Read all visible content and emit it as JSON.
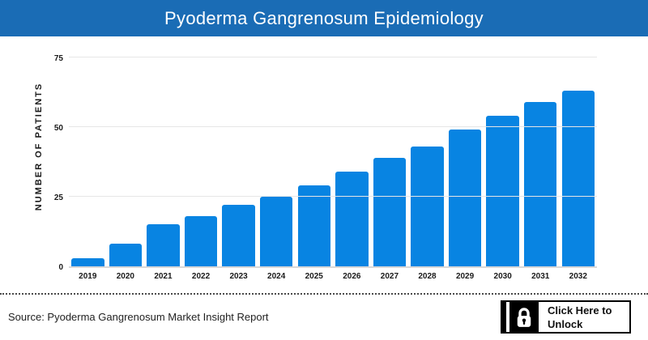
{
  "header": {
    "title": "Pyoderma Gangrenosum Epidemiology",
    "bg_color": "#1a6cb5",
    "text_color": "#ffffff"
  },
  "chart_data": {
    "type": "bar",
    "title": "Pyoderma Gangrenosum Epidemiology",
    "categories": [
      "2019",
      "2020",
      "2021",
      "2022",
      "2023",
      "2024",
      "2025",
      "2026",
      "2027",
      "2028",
      "2029",
      "2030",
      "2031",
      "2032"
    ],
    "values": [
      3,
      8,
      15,
      18,
      22,
      25,
      29,
      34,
      39,
      43,
      49,
      54,
      59,
      63
    ],
    "xlabel": "",
    "ylabel": "NUMBER OF PATIENTS",
    "ylim": [
      0,
      75
    ],
    "yticks": [
      0,
      25,
      50,
      75
    ],
    "grid": true,
    "legend": "none",
    "bar_color": "#0884e2",
    "gridline_color": "#e6e6e6"
  },
  "footer": {
    "source_text": "Source: Pyoderma Gangrenosum Market Insight Report",
    "unlock_button": {
      "icon": "lock-icon",
      "label_line1": "Click Here to",
      "label_line2": "Unlock"
    }
  }
}
